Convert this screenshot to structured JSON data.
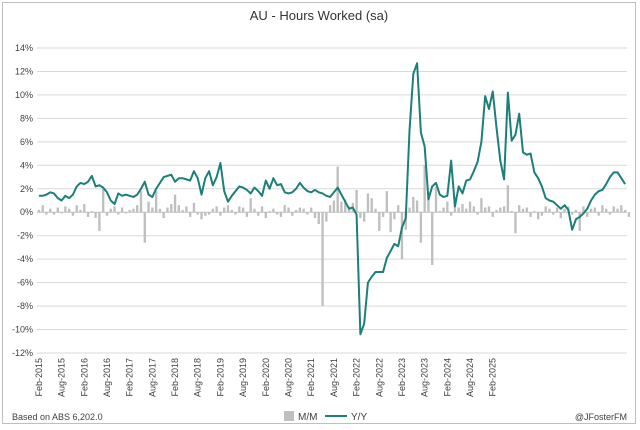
{
  "chart_data": {
    "type": "bar+line",
    "title": "AU - Hours Worked (sa)",
    "xlabel": "",
    "ylabel": "",
    "ylim": [
      -12,
      14
    ],
    "y_ticks": [
      "14%",
      "12%",
      "10%",
      "8%",
      "6%",
      "4%",
      "2%",
      "0%",
      "-2%",
      "-4%",
      "-6%",
      "-8%",
      "-10%",
      "-12%"
    ],
    "x_ticks": [
      "Feb-2015",
      "Aug-2015",
      "Feb-2016",
      "Aug-2016",
      "Feb-2017",
      "Aug-2017",
      "Feb-2018",
      "Aug-2018",
      "Feb-2019",
      "Aug-2019",
      "Feb-2020",
      "Aug-2020",
      "Feb-2021",
      "Aug-2021",
      "Feb-2022",
      "Aug-2022",
      "Feb-2023",
      "Aug-2023",
      "Feb-2024",
      "Aug-2024",
      "Feb-2025"
    ],
    "grid": "horizontal",
    "legend_position": "bottom",
    "source_note": "Based on ABS 6,202.0",
    "attribution": "@JFosterFM",
    "series": [
      {
        "name": "M/M",
        "type": "bar",
        "color": "#bfbfbf",
        "values": [
          0.2,
          0.6,
          -0.2,
          0.3,
          -0.2,
          0.4,
          -0.1,
          0.5,
          0.3,
          -0.3,
          0.6,
          0.2,
          0.7,
          -0.4,
          0.1,
          -0.5,
          -1.6,
          2.0,
          -0.3,
          0.3,
          0.5,
          -0.2,
          0.4,
          -0.1,
          0.2,
          0.3,
          0.6,
          1.8,
          -2.6,
          0.9,
          0.4,
          1.8,
          0.3,
          -0.5,
          0.4,
          0.7,
          1.5,
          0.6,
          0.2,
          0.5,
          -0.4,
          0.8,
          -0.2,
          -0.6,
          -0.3,
          -0.2,
          0.3,
          0.5,
          -0.3,
          0.4,
          0.6,
          0.2,
          -0.2,
          0.5,
          0.4,
          -0.4,
          1.2,
          0.3,
          -0.3,
          0.5,
          -0.5,
          0.1,
          0.3,
          -0.2,
          -0.4,
          0.6,
          0.4,
          -0.3,
          0.2,
          0.4,
          0.3,
          -0.2,
          0.4,
          -0.5,
          -1.0,
          -8.0,
          -0.8,
          0.6,
          1.0,
          3.9,
          0.9,
          1.1,
          0.5,
          0.8,
          1.9,
          -0.5,
          -0.8,
          1.6,
          1.2,
          0.3,
          -1.6,
          -0.4,
          1.8,
          -1.7,
          -0.6,
          0.6,
          -4.0,
          -1.5,
          0.4,
          1.3,
          1.0,
          -2.6,
          4.0,
          1.7,
          -4.5,
          2.2,
          0.1,
          0.4,
          0.9,
          -0.3,
          1.3,
          0.4,
          0.7,
          0.3,
          0.9,
          0.5,
          -0.2,
          1.2,
          0.4,
          0.5,
          -0.4,
          0.2,
          0.4,
          0.5,
          2.3,
          0.1,
          -1.8,
          0.6,
          0.3,
          0.4,
          -0.4,
          0.1,
          -0.6,
          -0.3,
          0.5,
          0.3,
          -0.2,
          0.4,
          -0.5,
          0.3,
          0.5,
          -0.2,
          0.2,
          -1.6,
          0.5,
          -0.4,
          0.3,
          0.4,
          -0.3,
          0.6,
          0.3,
          -0.2,
          0.5,
          0.3,
          0.6,
          0.2,
          -0.4
        ]
      },
      {
        "name": "Y/Y",
        "type": "line",
        "color": "#1b7f7a",
        "values": [
          1.4,
          1.4,
          1.5,
          1.7,
          1.6,
          1.2,
          1.0,
          1.4,
          1.2,
          1.5,
          2.2,
          2.5,
          2.4,
          2.6,
          3.1,
          2.2,
          2.3,
          2.1,
          1.7,
          1.0,
          0.7,
          1.6,
          1.4,
          1.5,
          1.4,
          1.3,
          1.5,
          2.0,
          2.6,
          1.5,
          1.3,
          2.0,
          2.5,
          3.0,
          3.1,
          3.2,
          2.6,
          2.9,
          2.9,
          2.8,
          2.7,
          3.5,
          2.9,
          1.5,
          2.9,
          3.5,
          2.3,
          3.0,
          4.2,
          1.8,
          0.9,
          1.4,
          1.8,
          2.2,
          2.1,
          1.9,
          1.6,
          2.1,
          1.8,
          1.4,
          2.7,
          2.0,
          2.9,
          2.3,
          2.4,
          1.7,
          1.6,
          1.7,
          2.0,
          2.5,
          2.1,
          1.8,
          1.7,
          1.9,
          1.7,
          1.6,
          1.4,
          1.3,
          1.7,
          2.1,
          1.5,
          0.9,
          0.3,
          0.4,
          -0.2,
          -10.4,
          -9.5,
          -6.0,
          -5.5,
          -5.1,
          -5.1,
          -5.1,
          -3.9,
          -3.3,
          -2.7,
          -2.9,
          -1.3,
          -0.5,
          7.0,
          11.8,
          12.7,
          6.8,
          5.6,
          1.1,
          2.2,
          2.5,
          1.5,
          1.3,
          1.4,
          4.4,
          0.5,
          2.2,
          1.6,
          2.7,
          2.8,
          3.5,
          4.3,
          6.0,
          9.9,
          8.8,
          10.3,
          7.2,
          4.4,
          2.8,
          10.2,
          6.1,
          6.6,
          8.4,
          5.1,
          4.9,
          5.0,
          3.4,
          2.9,
          2.2,
          1.2,
          1.0,
          0.9,
          0.6,
          0.3,
          0.6,
          0.2,
          -1.5,
          -0.6,
          -0.4,
          -0.1,
          0.3,
          1.0,
          1.5,
          1.8,
          1.9,
          2.4,
          3.0,
          3.4,
          3.4,
          2.9,
          2.4
        ]
      }
    ]
  }
}
